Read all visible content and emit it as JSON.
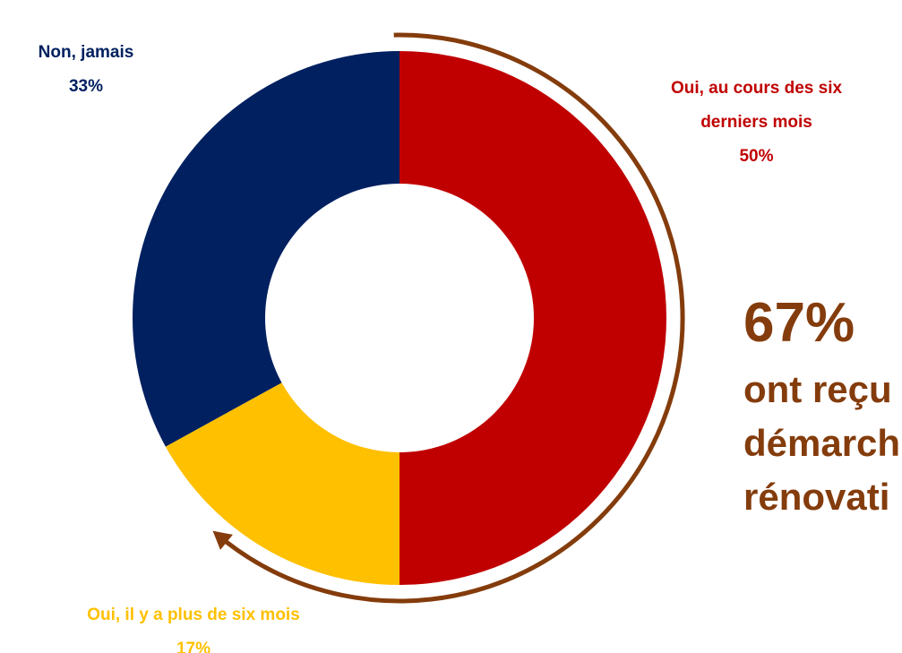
{
  "chart_data": {
    "type": "donut",
    "categories": [
      "Oui, au cours des six derniers mois",
      "Oui, il y a plus de six mois",
      "Non, jamais"
    ],
    "values": [
      50,
      17,
      33
    ],
    "value_labels": [
      "50%",
      "17%",
      "33%"
    ],
    "colors": [
      "#c00000",
      "#ffc000",
      "#002060"
    ],
    "annotation": {
      "value": "67%",
      "lines": [
        "ont reçu",
        "démarch",
        "rénovati"
      ],
      "color": "#843c0c"
    }
  }
}
